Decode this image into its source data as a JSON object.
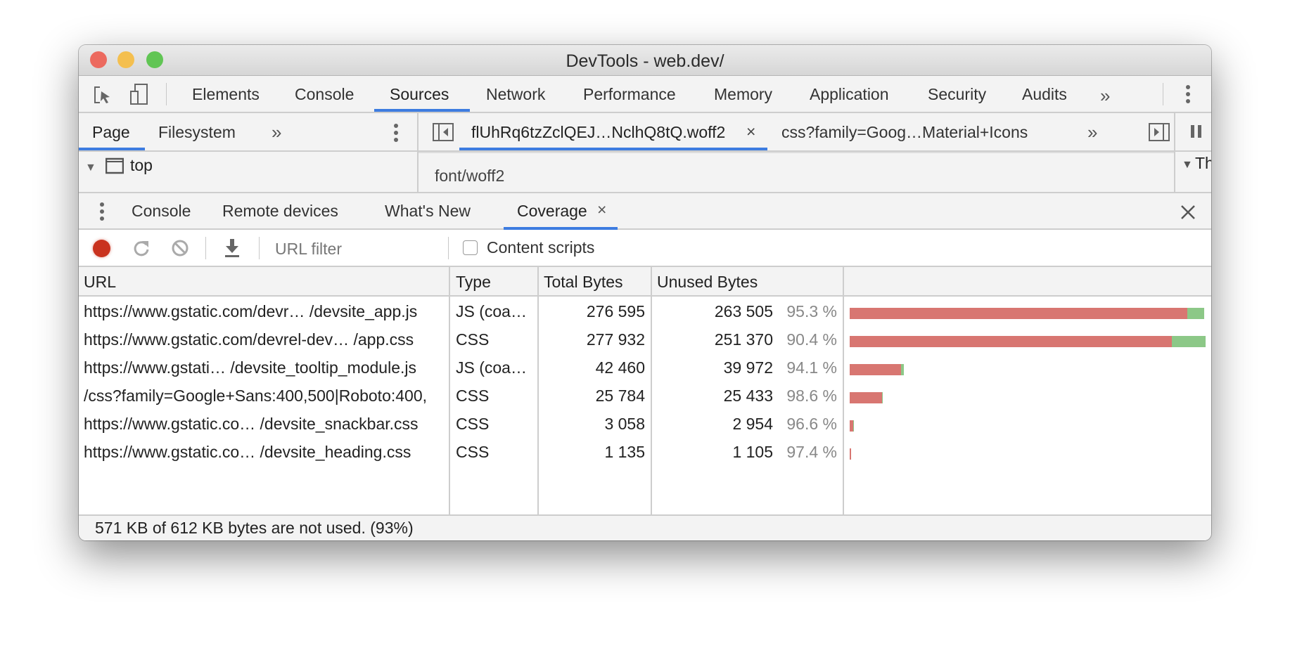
{
  "window": {
    "title": "DevTools - web.dev/"
  },
  "main_tabs": [
    "Elements",
    "Console",
    "Sources",
    "Network",
    "Performance",
    "Memory",
    "Application",
    "Security",
    "Audits"
  ],
  "active_main_tab": "Sources",
  "more_label": "»",
  "navigator": {
    "tabs": [
      "Page",
      "Filesystem"
    ],
    "active": "Page",
    "tree_item": "top"
  },
  "editor": {
    "tabs": [
      {
        "label": "flUhRq6tzZclQEJ…NclhQ8tQ.woff2",
        "active": true,
        "closable": true
      },
      {
        "label": "css?family=Goog…Material+Icons",
        "active": false
      }
    ],
    "content": "font/woff2"
  },
  "right_panel": {
    "partial_label": "Th"
  },
  "drawer": {
    "tabs": [
      "Console",
      "Remote devices",
      "What's New",
      "Coverage"
    ],
    "active": "Coverage"
  },
  "coverage_toolbar": {
    "url_filter_placeholder": "URL filter",
    "content_scripts_label": "Content scripts",
    "content_scripts_checked": false
  },
  "table": {
    "columns": [
      "URL",
      "Type",
      "Total Bytes",
      "Unused Bytes"
    ],
    "rows": [
      {
        "url": "https://www.gstatic.com/devr… /devsite_app.js",
        "type": "JS (coa…",
        "total": "276 595",
        "unused": "263 505",
        "pct": "95.3 %",
        "total_bytes": 276595,
        "unused_bytes": 263505
      },
      {
        "url": "https://www.gstatic.com/devrel-dev… /app.css",
        "type": "CSS",
        "total": "277 932",
        "unused": "251 370",
        "pct": "90.4 %",
        "total_bytes": 277932,
        "unused_bytes": 251370
      },
      {
        "url": "https://www.gstati… /devsite_tooltip_module.js",
        "type": "JS (coa…",
        "total": "42 460",
        "unused": "39 972",
        "pct": "94.1 %",
        "total_bytes": 42460,
        "unused_bytes": 39972
      },
      {
        "url": "/css?family=Google+Sans:400,500|Roboto:400,",
        "type": "CSS",
        "total": "25 784",
        "unused": "25 433",
        "pct": "98.6 %",
        "total_bytes": 25784,
        "unused_bytes": 25433
      },
      {
        "url": "https://www.gstatic.co… /devsite_snackbar.css",
        "type": "CSS",
        "total": "3 058",
        "unused": "2 954",
        "pct": "96.6 %",
        "total_bytes": 3058,
        "unused_bytes": 2954
      },
      {
        "url": "https://www.gstatic.co…  /devsite_heading.css",
        "type": "CSS",
        "total": "1 135",
        "unused": "1 105",
        "pct": "97.4 %",
        "total_bytes": 1135,
        "unused_bytes": 1105
      }
    ]
  },
  "footer": {
    "summary": "571 KB of 612 KB bytes are not used. (93%)"
  },
  "colors": {
    "accent": "#3d7ce0",
    "unused": "#d87671",
    "used": "#8cc887",
    "record": "#c9321e"
  }
}
